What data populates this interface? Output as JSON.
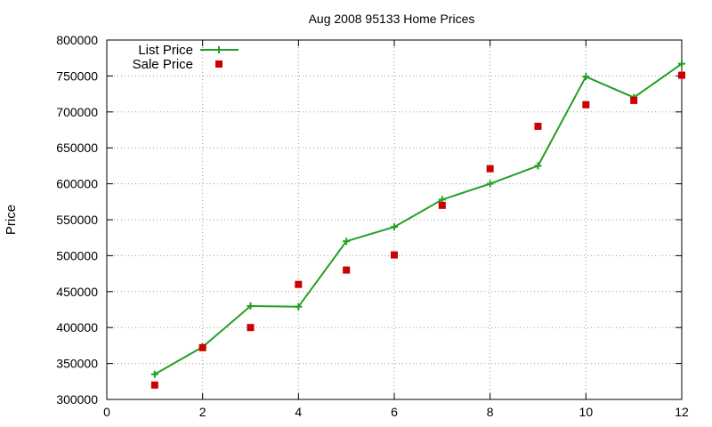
{
  "chart_data": {
    "type": "line",
    "title": "Aug 2008 95133 Home Prices",
    "xlabel": "",
    "ylabel": "Price",
    "xlim": [
      0,
      12
    ],
    "ylim": [
      300000,
      800000
    ],
    "xticks": [
      0,
      2,
      4,
      6,
      8,
      10,
      12
    ],
    "yticks": [
      300000,
      350000,
      400000,
      450000,
      500000,
      550000,
      600000,
      650000,
      700000,
      750000,
      800000
    ],
    "grid": true,
    "legend_position": "top-left",
    "series": [
      {
        "name": "List Price",
        "style": "line-with-plus-markers",
        "color": "#22a022",
        "x": [
          1,
          2,
          3,
          4,
          5,
          6,
          7,
          8,
          9,
          10,
          11,
          12
        ],
        "y": [
          335000,
          373000,
          430000,
          429000,
          520000,
          540000,
          578000,
          600000,
          625000,
          749000,
          720000,
          767000
        ]
      },
      {
        "name": "Sale Price",
        "style": "square-markers",
        "color": "#cc0000",
        "x": [
          1,
          2,
          3,
          4,
          5,
          6,
          7,
          8,
          9,
          10,
          11,
          12
        ],
        "y": [
          320000,
          372000,
          400000,
          460000,
          480000,
          501000,
          570000,
          621000,
          680000,
          710000,
          716000,
          751000
        ]
      }
    ]
  }
}
